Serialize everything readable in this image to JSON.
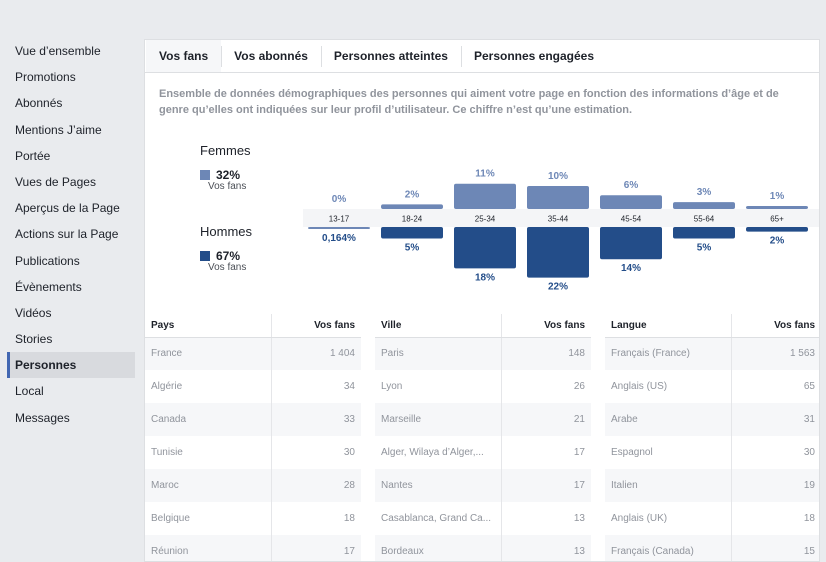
{
  "sidebar": {
    "items": [
      {
        "label": "Vue d’ensemble",
        "active": false
      },
      {
        "label": "Promotions",
        "active": false
      },
      {
        "label": "Abonnés",
        "active": false
      },
      {
        "label": "Mentions J’aime",
        "active": false
      },
      {
        "label": "Portée",
        "active": false
      },
      {
        "label": "Vues de Pages",
        "active": false
      },
      {
        "label": "Aperçus de la Page",
        "active": false
      },
      {
        "label": "Actions sur la Page",
        "active": false
      },
      {
        "label": "Publications",
        "active": false
      },
      {
        "label": "Évènements",
        "active": false
      },
      {
        "label": "Vidéos",
        "active": false
      },
      {
        "label": "Stories",
        "active": false
      },
      {
        "label": "Personnes",
        "active": true
      },
      {
        "label": "Local",
        "active": false
      },
      {
        "label": "Messages",
        "active": false
      }
    ]
  },
  "tabs": [
    {
      "label": "Vos fans",
      "active": true
    },
    {
      "label": "Vos abonnés",
      "active": false
    },
    {
      "label": "Personnes atteintes",
      "active": false
    },
    {
      "label": "Personnes engagées",
      "active": false
    }
  ],
  "description": "Ensemble de données démographiques des personnes qui aiment votre page en fonction des informations d’âge et de genre qu’elles ont indiquées sur leur profil d’utilisateur. Ce chiffre n’est qu’une estimation.",
  "legend": {
    "women": {
      "title": "Femmes",
      "percent": "32%",
      "sub": "Vos fans",
      "color": "#6d87b6"
    },
    "men": {
      "title": "Hommes",
      "percent": "67%",
      "sub": "Vos fans",
      "color": "#234d89"
    }
  },
  "chart_data": {
    "type": "bar",
    "categories": [
      "13-17",
      "18-24",
      "25-34",
      "35-44",
      "45-54",
      "55-64",
      "65+"
    ],
    "series": [
      {
        "name": "Femmes",
        "values": [
          0,
          2,
          11,
          10,
          6,
          3,
          1
        ],
        "labels": [
          "0%",
          "2%",
          "11%",
          "10%",
          "6%",
          "3%",
          "1%"
        ],
        "color": "#6d87b6"
      },
      {
        "name": "Hommes",
        "values": [
          0.164,
          5,
          18,
          22,
          14,
          5,
          2
        ],
        "labels": [
          "0,164%",
          "5%",
          "18%",
          "22%",
          "14%",
          "5%",
          "2%"
        ],
        "color": "#234d89"
      }
    ],
    "title": "",
    "xlabel": "",
    "ylabel": ""
  },
  "tables": {
    "countries": {
      "headers": [
        "Pays",
        "Vos fans"
      ],
      "rows": [
        [
          "France",
          "1 404"
        ],
        [
          "Algérie",
          "34"
        ],
        [
          "Canada",
          "33"
        ],
        [
          "Tunisie",
          "30"
        ],
        [
          "Maroc",
          "28"
        ],
        [
          "Belgique",
          "18"
        ],
        [
          "Réunion",
          "17"
        ]
      ]
    },
    "cities": {
      "headers": [
        "Ville",
        "Vos fans"
      ],
      "rows": [
        [
          "Paris",
          "148"
        ],
        [
          "Lyon",
          "26"
        ],
        [
          "Marseille",
          "21"
        ],
        [
          "Alger, Wilaya d’Alger,...",
          "17"
        ],
        [
          "Nantes",
          "17"
        ],
        [
          "Casablanca, Grand Ca...",
          "13"
        ],
        [
          "Bordeaux",
          "13"
        ]
      ]
    },
    "languages": {
      "headers": [
        "Langue",
        "Vos fans"
      ],
      "rows": [
        [
          "Français (France)",
          "1 563"
        ],
        [
          "Anglais (US)",
          "65"
        ],
        [
          "Arabe",
          "31"
        ],
        [
          "Espagnol",
          "30"
        ],
        [
          "Italien",
          "19"
        ],
        [
          "Anglais (UK)",
          "18"
        ],
        [
          "Français (Canada)",
          "15"
        ]
      ]
    }
  }
}
